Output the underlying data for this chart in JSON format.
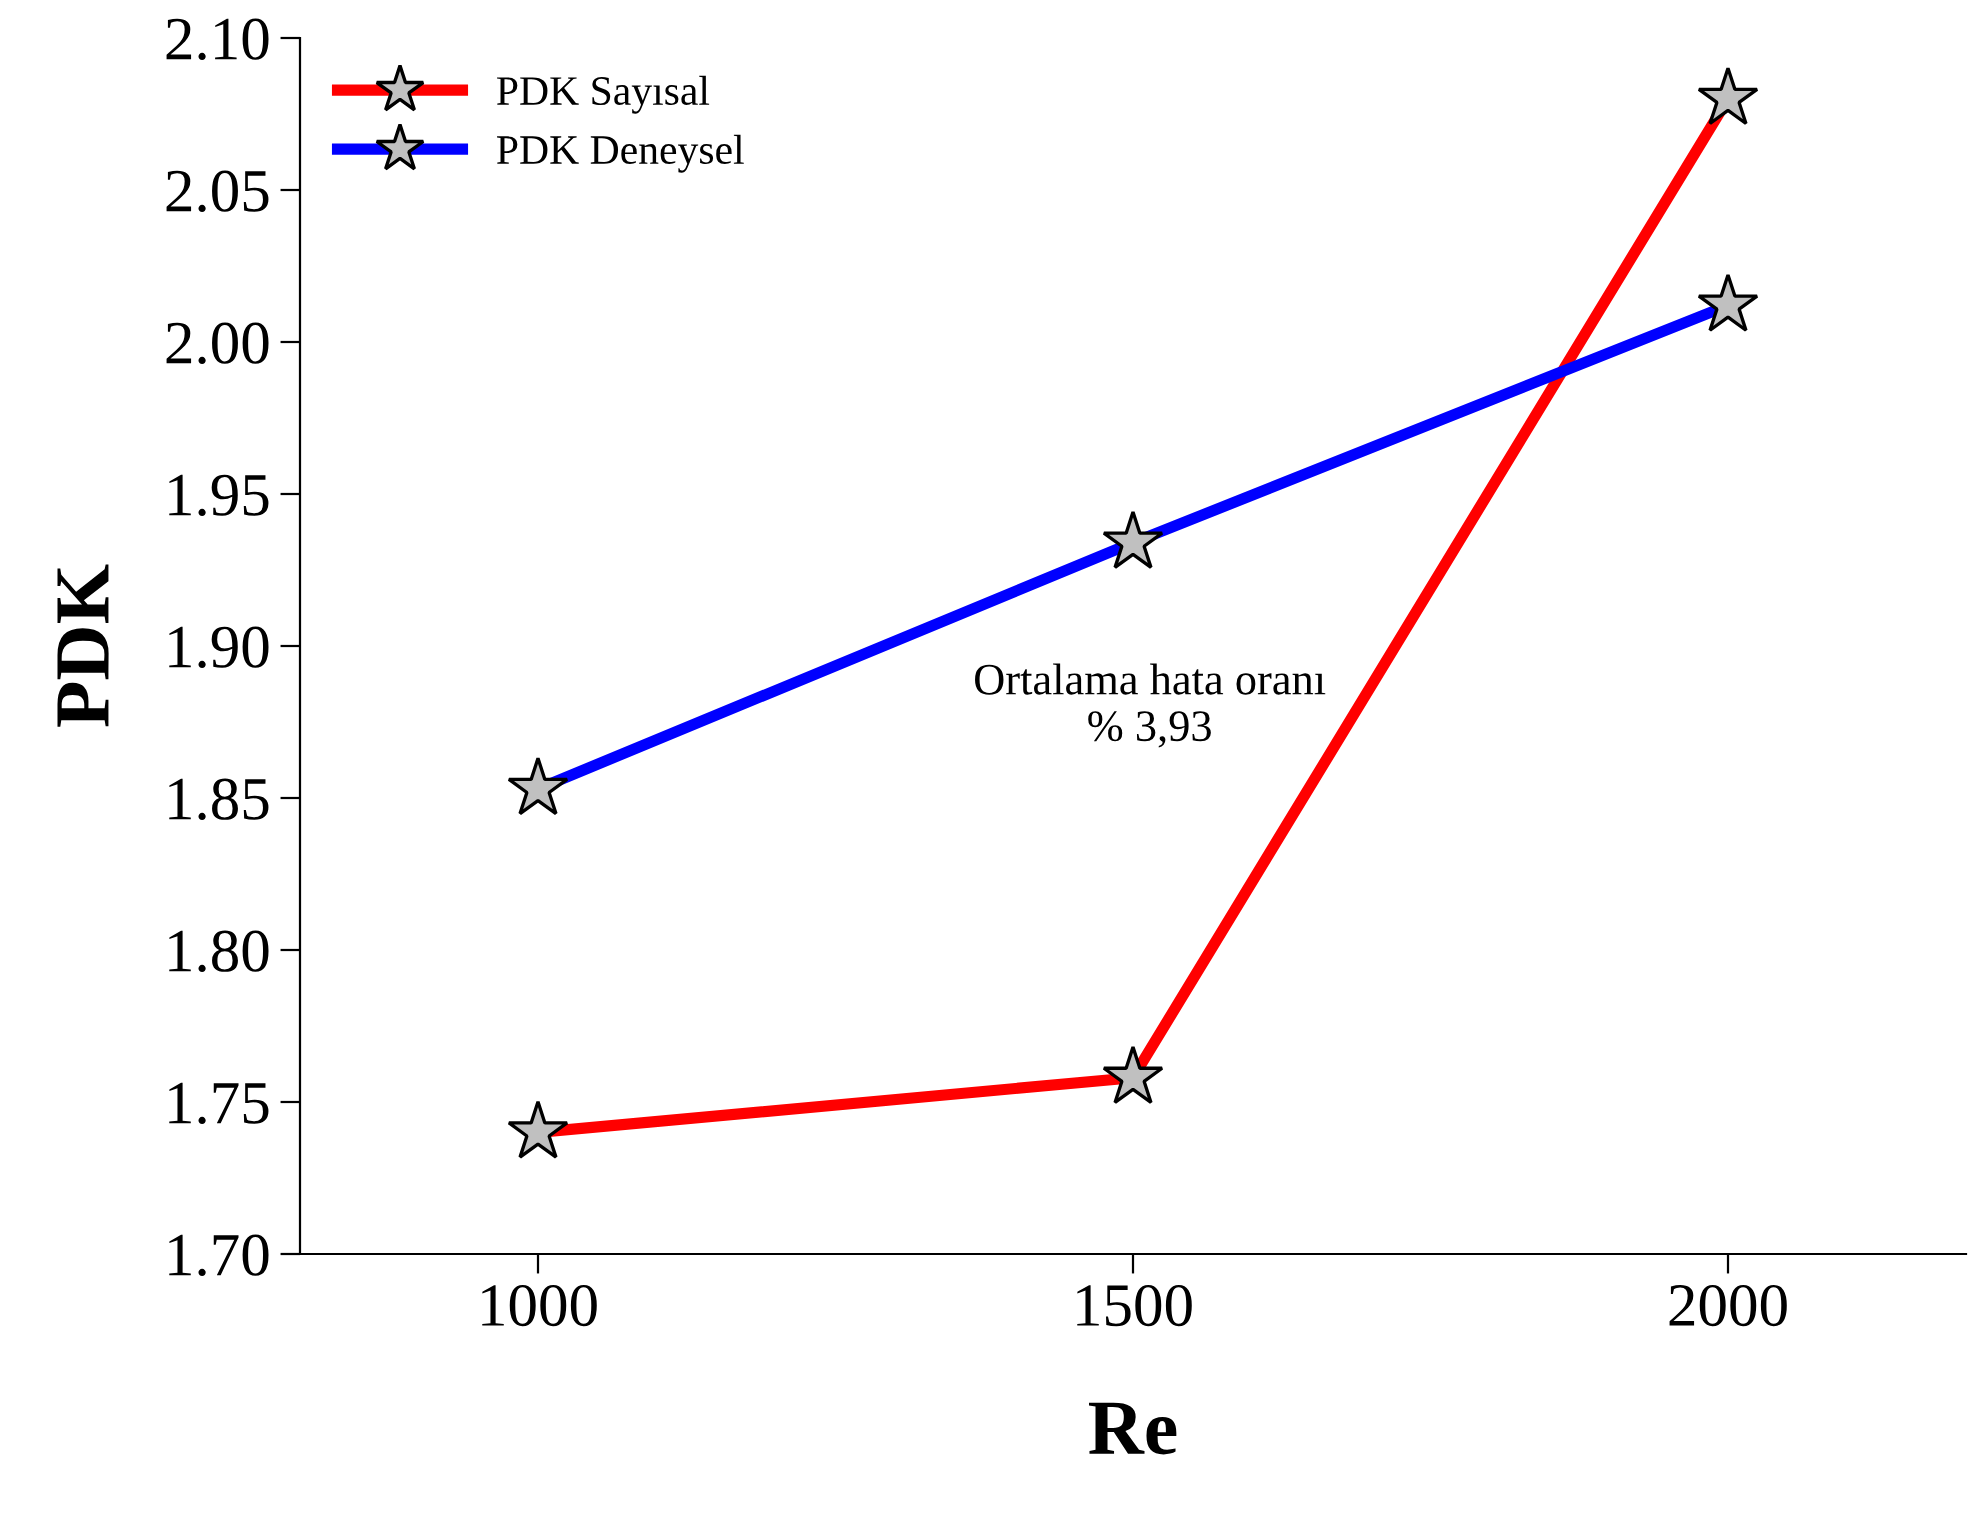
{
  "chart_data": {
    "type": "line",
    "xlabel": "Re",
    "ylabel": "PDK",
    "x": [
      1000,
      1500,
      2000
    ],
    "series": [
      {
        "name": "PDK Sayısal",
        "color": "#ff0000",
        "values": [
          1.74,
          1.758,
          2.08
        ]
      },
      {
        "name": "PDK Deneysel",
        "color": "#0000ff",
        "values": [
          1.853,
          1.934,
          2.012
        ]
      }
    ],
    "xlim": [
      800,
      2200
    ],
    "xticks": [
      1000,
      1500,
      2000
    ],
    "ylim": [
      1.7,
      2.1
    ],
    "yticks": [
      {
        "value": 1.7,
        "label": "1.70"
      },
      {
        "value": 1.75,
        "label": "1.75"
      },
      {
        "value": 1.8,
        "label": "1.80"
      },
      {
        "value": 1.85,
        "label": "1.85"
      },
      {
        "value": 1.9,
        "label": "1.90"
      },
      {
        "value": 1.95,
        "label": "1.95"
      },
      {
        "value": 2.0,
        "label": "2.00"
      },
      {
        "value": 2.05,
        "label": "2.05"
      },
      {
        "value": 2.1,
        "label": "2.10"
      }
    ],
    "annotations": [
      "Ortalama hata oranı\n% 3,93"
    ],
    "marker": "star",
    "line_style": "solid",
    "grid": false,
    "legend": "top left"
  }
}
